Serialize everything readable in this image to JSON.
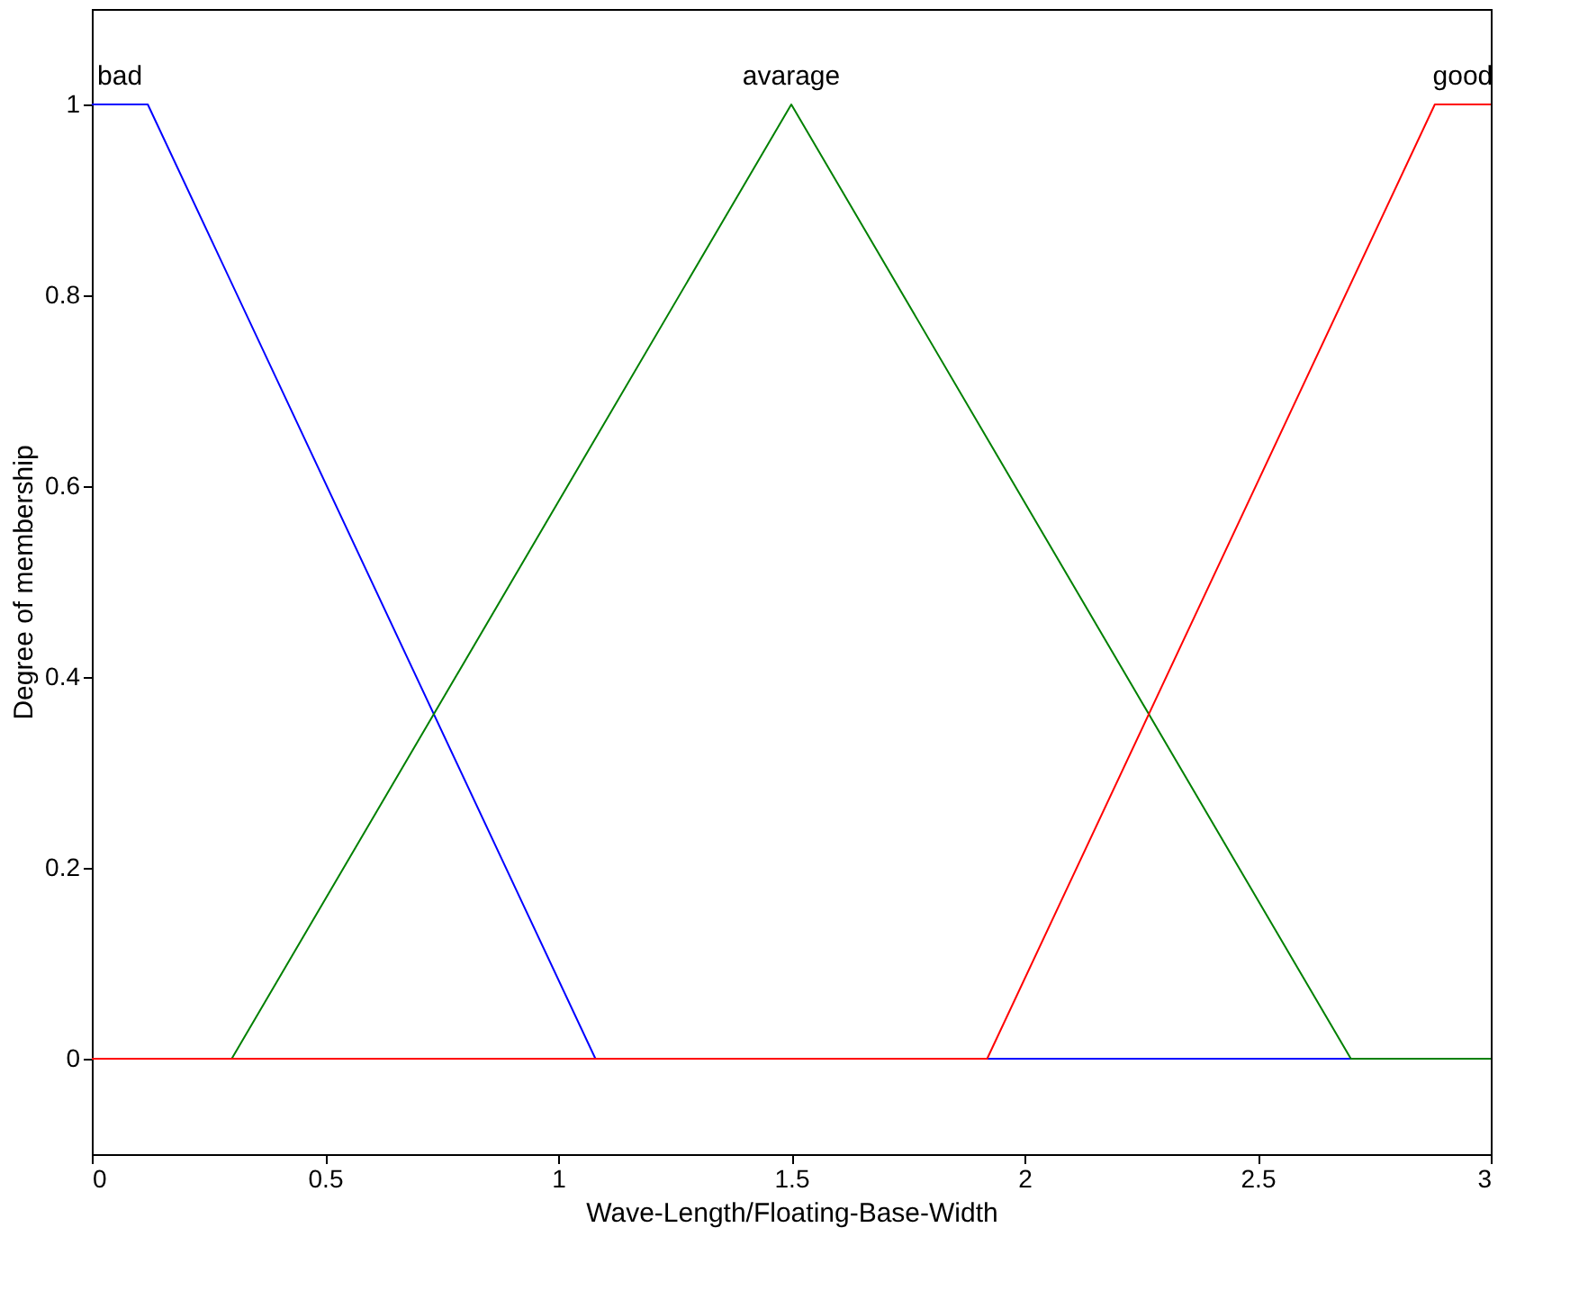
{
  "chart_data": {
    "type": "line",
    "xlabel": "Wave-Length/Floating-Base-Width",
    "ylabel": "Degree of membership",
    "series": [
      {
        "name": "bad",
        "color": "#0000ff",
        "x": [
          0,
          0.12,
          1.08,
          3
        ],
        "values": [
          1,
          1,
          0,
          0
        ]
      },
      {
        "name": "avarage",
        "color": "#008000",
        "x": [
          0,
          0.3,
          1.5,
          2.7,
          3
        ],
        "values": [
          0,
          0,
          1,
          0,
          0
        ]
      },
      {
        "name": "good",
        "color": "#ff0000",
        "x": [
          0,
          1.92,
          2.88,
          3
        ],
        "values": [
          0,
          0,
          1,
          1
        ]
      }
    ],
    "xlim": [
      0,
      3
    ],
    "xticks": [
      0,
      0.5,
      1,
      1.5,
      2,
      2.5,
      3
    ],
    "ylim": [
      -0.1,
      1.1
    ],
    "yticks": [
      0,
      0.2,
      0.4,
      0.6,
      0.8,
      1
    ],
    "grid": false,
    "legend": false,
    "marker": "none",
    "line_style": "solid"
  }
}
